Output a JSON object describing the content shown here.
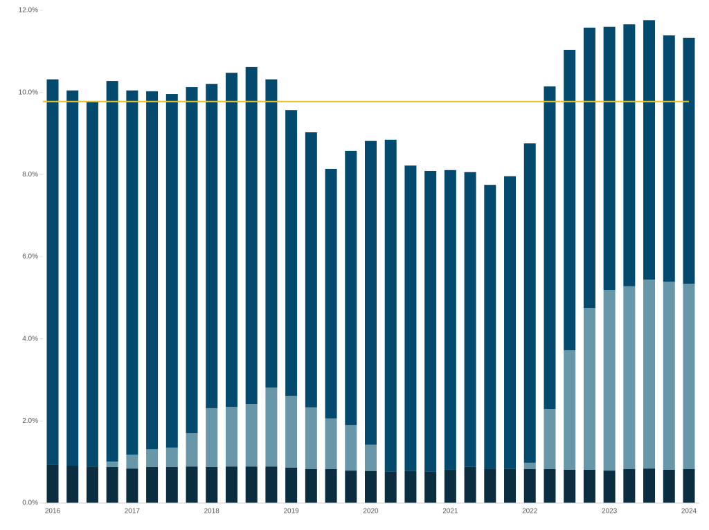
{
  "chart_data": {
    "type": "stacked_bar",
    "categories": [
      "2016",
      null,
      null,
      null,
      "2017",
      null,
      null,
      null,
      "2018",
      null,
      null,
      null,
      "2019",
      null,
      null,
      null,
      "2020",
      null,
      null,
      null,
      "2021",
      null,
      null,
      null,
      "2022",
      null,
      null,
      null,
      "2023",
      null,
      null,
      null,
      "2024"
    ],
    "series": [
      {
        "color": "#0a2e3f",
        "values": [
          0.94,
          0.91,
          0.89,
          0.88,
          0.84,
          0.88,
          0.88,
          0.89,
          0.88,
          0.89,
          0.89,
          0.89,
          0.86,
          0.83,
          0.83,
          0.79,
          0.78,
          0.76,
          0.78,
          0.76,
          0.81,
          0.88,
          0.84,
          0.83,
          0.83,
          0.83,
          0.81,
          0.81,
          0.79,
          0.83,
          0.84,
          0.81,
          0.83
        ]
      },
      {
        "color": "#6797a8",
        "values": [
          0,
          0,
          0,
          0.13,
          0.34,
          0.43,
          0.47,
          0.81,
          1.43,
          1.45,
          1.52,
          1.92,
          1.75,
          1.5,
          1.23,
          1.11,
          0.64,
          0,
          0,
          0,
          0,
          0,
          0,
          0,
          0.15,
          1.46,
          2.91,
          3.94,
          4.4,
          4.45,
          4.6,
          4.58,
          4.51
        ]
      },
      {
        "color": "#044a6e",
        "values": [
          9.38,
          9.14,
          8.9,
          9.27,
          8.87,
          8.72,
          8.61,
          8.43,
          7.9,
          8.14,
          8.21,
          7.51,
          6.96,
          6.7,
          6.08,
          6.68,
          7.4,
          8.09,
          7.44,
          7.33,
          7.3,
          7.18,
          6.91,
          7.13,
          7.78,
          7.86,
          7.32,
          6.83,
          6.41,
          6.38,
          6.32,
          6.0,
          5.99
        ]
      }
    ],
    "reference_line": {
      "value": 9.78,
      "color": "#e5c229"
    },
    "ylim": [
      0,
      12
    ],
    "yticks": [
      {
        "value": 0,
        "label": "0.0%"
      },
      {
        "value": 2,
        "label": "2.0%"
      },
      {
        "value": 4,
        "label": "4.0%"
      },
      {
        "value": 6,
        "label": "6.0%"
      },
      {
        "value": 8,
        "label": "8.0%"
      },
      {
        "value": 10,
        "label": "10.0%"
      },
      {
        "value": 12,
        "label": "12.0%"
      }
    ],
    "grid": false
  }
}
